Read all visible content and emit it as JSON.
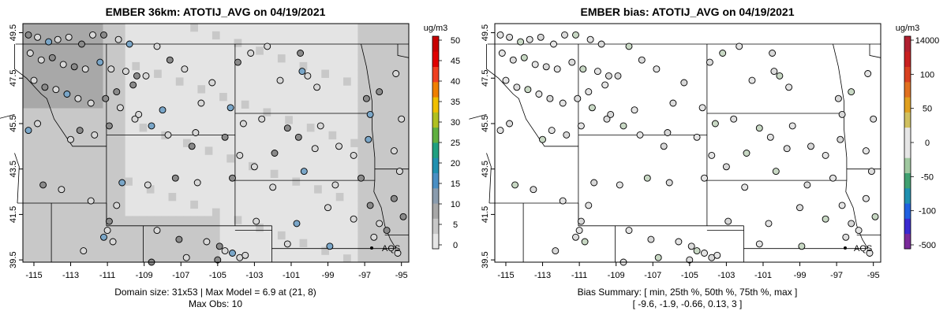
{
  "left_panel": {
    "title": "EMBER 36km: ATOTIJ_AVG on 04/19/2021",
    "colorbar_unit": "ug/m3",
    "colorbar_ticks": [
      "0",
      "5",
      "10",
      "15",
      "20",
      "25",
      "30",
      "35",
      "40",
      "45",
      "50"
    ],
    "colorbar_colors": [
      "#e6e6e6",
      "#c8c8c8",
      "#a8a8a8",
      "#8a9cae",
      "#4a8fc4",
      "#2090b0",
      "#20a080",
      "#60b040",
      "#b0c020",
      "#f0c000",
      "#f08000",
      "#f04020",
      "#e00000",
      "#c80000"
    ],
    "caption_line1": "Domain size: 31x53 | Max Model = 6.9 at (21, 8)",
    "caption_line2": "Max Obs: 10"
  },
  "right_panel": {
    "title": "EMBER bias: ATOTIJ_AVG on 04/19/2021",
    "colorbar_unit": "ug/m3",
    "colorbar_ticks": [
      "-500",
      "-100",
      "-50",
      "0",
      "50",
      "100",
      "14000"
    ],
    "colorbar_colors": [
      "#7a2a9a",
      "#3a2ad0",
      "#2060e0",
      "#2090b0",
      "#40a070",
      "#a0c8a0",
      "#e6e6e6",
      "#e6e6e6",
      "#d0c060",
      "#e0a020",
      "#e07020",
      "#d84020",
      "#c82020",
      "#b02030"
    ],
    "caption_line1": "Bias Summary: [ min, 25th %, 50th %, 75th %, max ]",
    "caption_line2": "[ -9.6,   -1.9,   -0.66,   0.13,   3 ]"
  },
  "map_axes": {
    "lon_ticks": [
      "-115",
      "-113",
      "-111",
      "-109",
      "-107",
      "-105",
      "-103",
      "-101",
      "-99",
      "-97",
      "-95"
    ],
    "lat_ticks": [
      "39.5",
      "41.5",
      "43.5",
      "45.5",
      "47.5",
      "49.5"
    ],
    "lon_range": [
      -115.6,
      -94.6
    ],
    "lat_range": [
      39.4,
      49.9
    ]
  },
  "site_label": "AQS",
  "colors": {
    "model_light": "#e4e4e4",
    "model_mid": "#c8c8c8",
    "model_dark": "#a8a8a8",
    "obs_gray": "#d8d8d8",
    "obs_blue": "#7aa6c8",
    "obs_dark": "#8a8a8a"
  }
}
